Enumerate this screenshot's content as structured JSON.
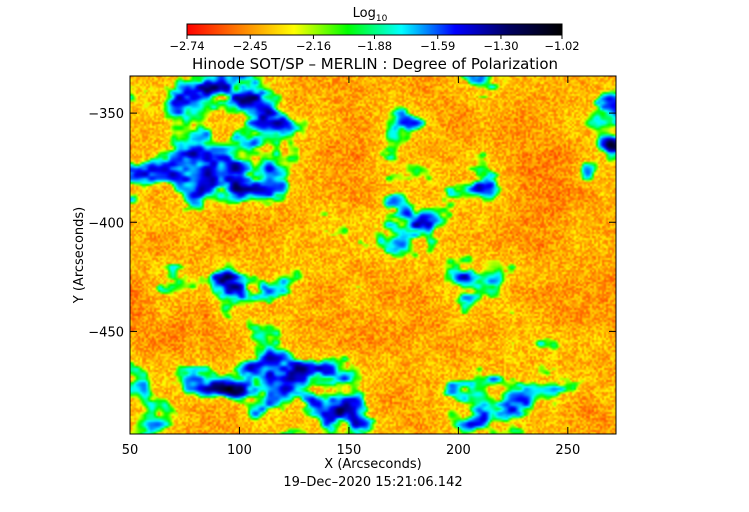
{
  "chart_data": {
    "type": "heatmap",
    "title": "Hinode SOT/SP – MERLIN : Degree of Polarization",
    "xlabel": "X (Arcseconds)",
    "ylabel": "Y (Arcseconds)",
    "timestamp": "19–Dec–2020 15:21:06.142",
    "xlim": [
      50,
      272
    ],
    "ylim": [
      -497,
      -333
    ],
    "x_ticks": [
      50,
      100,
      150,
      200,
      250
    ],
    "x_tick_labels": [
      "50",
      "100",
      "150",
      "200",
      "250"
    ],
    "y_ticks": [
      -350,
      -400,
      -450
    ],
    "y_tick_labels": [
      "−350",
      "−400",
      "−450"
    ],
    "colorbar": {
      "title": "Log",
      "title_subscript": "10",
      "min": -2.74,
      "max": -1.02,
      "ticks": [
        -2.74,
        -2.45,
        -2.16,
        -1.88,
        -1.59,
        -1.3,
        -1.02
      ],
      "tick_labels": [
        "−2.74",
        "−2.45",
        "−2.16",
        "−1.88",
        "−1.59",
        "−1.30",
        "−1.02"
      ],
      "colormap": [
        "#ff0000",
        "#ff8000",
        "#ffff00",
        "#00ff00",
        "#00ffff",
        "#0000ff",
        "#000060",
        "#000000"
      ]
    },
    "grid": false,
    "legend": "none"
  }
}
